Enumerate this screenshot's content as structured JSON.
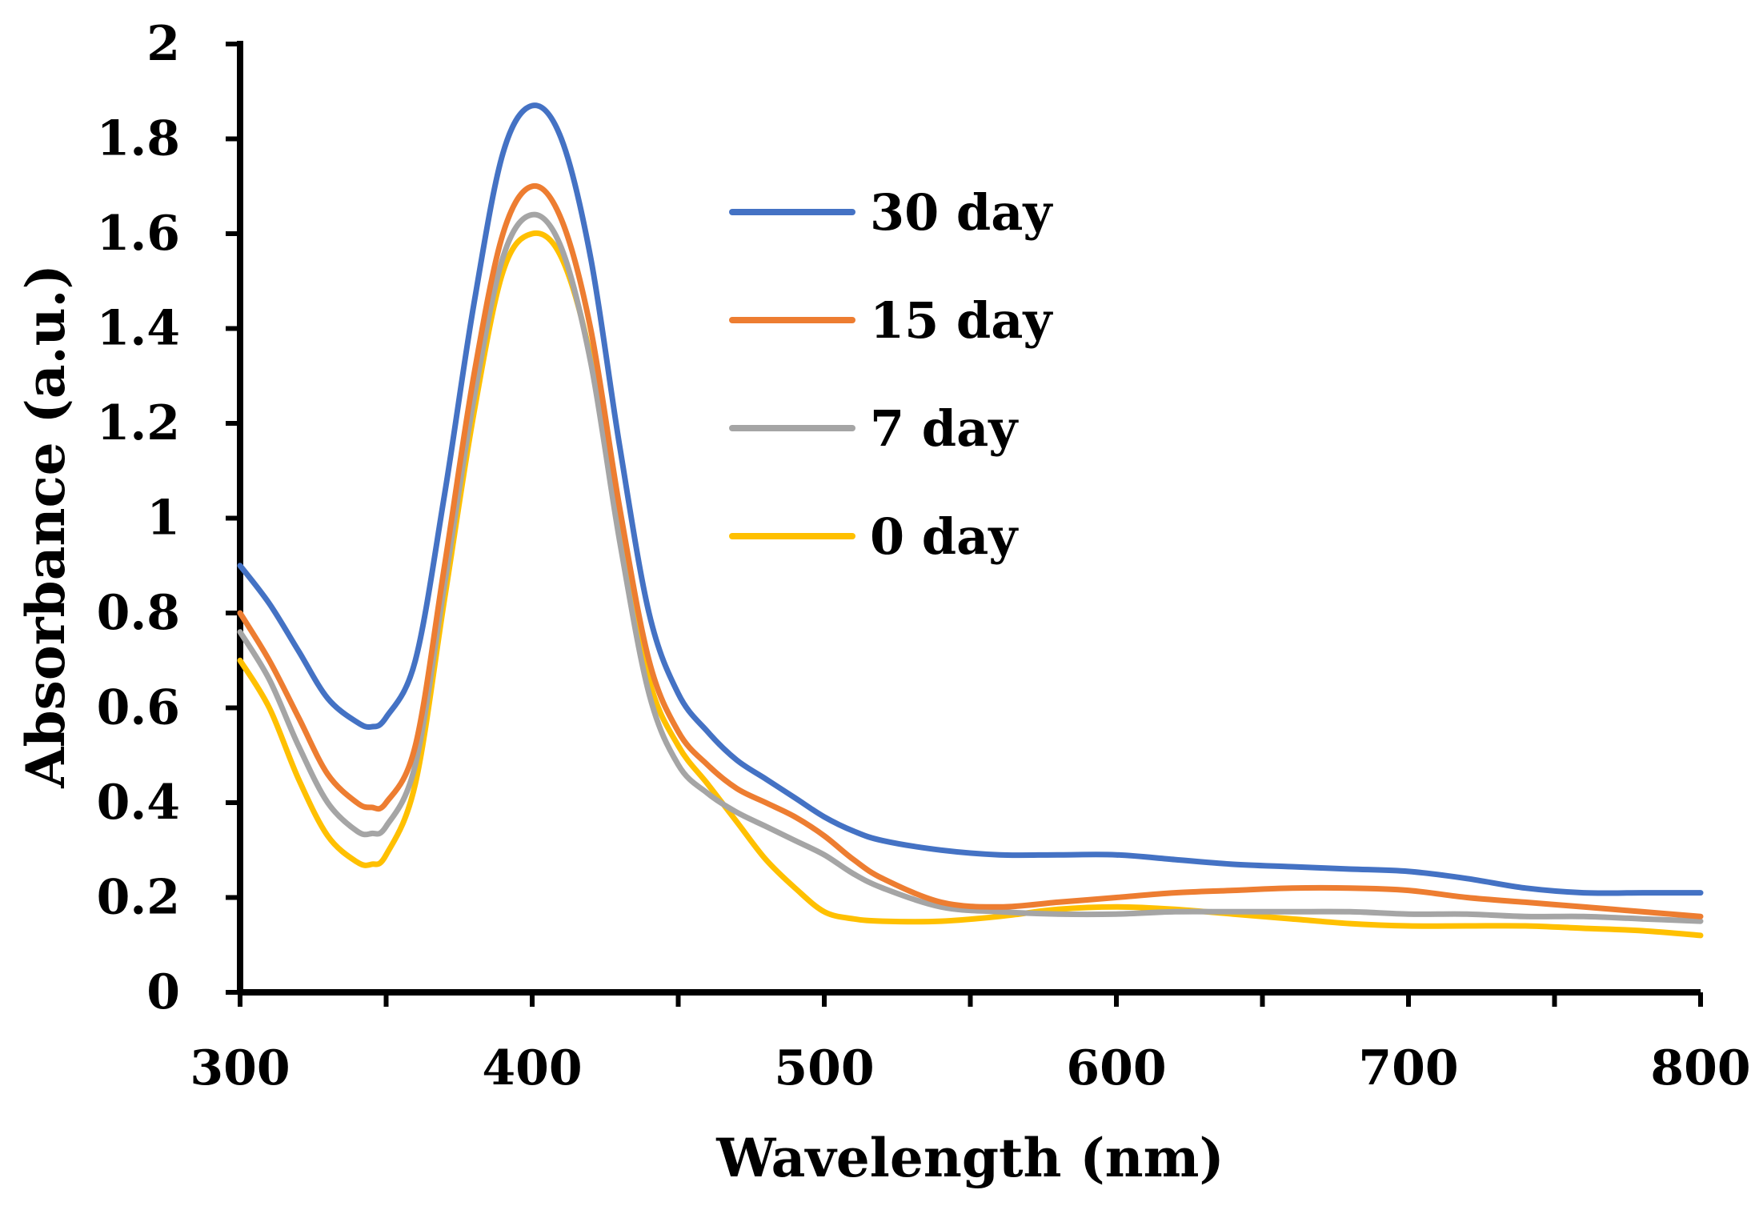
{
  "chart_data": {
    "type": "line",
    "title": "",
    "xlabel": "Wavelength (nm)",
    "ylabel": "Absorbance (a.u.)",
    "xlim": [
      300,
      800
    ],
    "ylim": [
      0,
      2
    ],
    "x_major_ticks": [
      300,
      400,
      500,
      600,
      700,
      800
    ],
    "x_minor_step": 50,
    "y_ticks": [
      0,
      0.2,
      0.4,
      0.6,
      0.8,
      1,
      1.2,
      1.4,
      1.6,
      1.8,
      2
    ],
    "x_tick_labels": [
      "300",
      "400",
      "500",
      "600",
      "700",
      "800"
    ],
    "y_tick_labels": [
      "0",
      "0.2",
      "0.4",
      "0.6",
      "0.8",
      "1",
      "1.2",
      "1.4",
      "1.6",
      "1.8",
      "2"
    ],
    "grid": false,
    "legend_position": "upper-middle",
    "series": [
      {
        "name": "30 day",
        "color": "#4472C4",
        "points": [
          [
            300,
            0.9
          ],
          [
            310,
            0.82
          ],
          [
            320,
            0.72
          ],
          [
            330,
            0.62
          ],
          [
            340,
            0.57
          ],
          [
            345,
            0.56
          ],
          [
            350,
            0.58
          ],
          [
            360,
            0.7
          ],
          [
            370,
            1.05
          ],
          [
            380,
            1.45
          ],
          [
            390,
            1.77
          ],
          [
            400,
            1.87
          ],
          [
            410,
            1.8
          ],
          [
            420,
            1.55
          ],
          [
            430,
            1.15
          ],
          [
            440,
            0.8
          ],
          [
            450,
            0.63
          ],
          [
            460,
            0.55
          ],
          [
            470,
            0.49
          ],
          [
            480,
            0.45
          ],
          [
            490,
            0.41
          ],
          [
            500,
            0.37
          ],
          [
            510,
            0.34
          ],
          [
            520,
            0.32
          ],
          [
            540,
            0.3
          ],
          [
            560,
            0.29
          ],
          [
            580,
            0.29
          ],
          [
            600,
            0.29
          ],
          [
            620,
            0.28
          ],
          [
            640,
            0.27
          ],
          [
            660,
            0.265
          ],
          [
            680,
            0.26
          ],
          [
            700,
            0.255
          ],
          [
            720,
            0.24
          ],
          [
            740,
            0.22
          ],
          [
            760,
            0.21
          ],
          [
            780,
            0.21
          ],
          [
            800,
            0.21
          ]
        ]
      },
      {
        "name": "15 day",
        "color": "#ED7D31",
        "points": [
          [
            300,
            0.8
          ],
          [
            310,
            0.7
          ],
          [
            320,
            0.58
          ],
          [
            330,
            0.46
          ],
          [
            340,
            0.4
          ],
          [
            345,
            0.39
          ],
          [
            350,
            0.4
          ],
          [
            360,
            0.52
          ],
          [
            370,
            0.9
          ],
          [
            380,
            1.3
          ],
          [
            390,
            1.6
          ],
          [
            400,
            1.7
          ],
          [
            410,
            1.63
          ],
          [
            420,
            1.4
          ],
          [
            430,
            1.02
          ],
          [
            440,
            0.7
          ],
          [
            450,
            0.55
          ],
          [
            460,
            0.48
          ],
          [
            470,
            0.43
          ],
          [
            480,
            0.4
          ],
          [
            490,
            0.37
          ],
          [
            500,
            0.33
          ],
          [
            510,
            0.28
          ],
          [
            520,
            0.24
          ],
          [
            540,
            0.19
          ],
          [
            560,
            0.18
          ],
          [
            580,
            0.19
          ],
          [
            600,
            0.2
          ],
          [
            620,
            0.21
          ],
          [
            640,
            0.215
          ],
          [
            660,
            0.22
          ],
          [
            680,
            0.22
          ],
          [
            700,
            0.215
          ],
          [
            720,
            0.2
          ],
          [
            740,
            0.19
          ],
          [
            760,
            0.18
          ],
          [
            780,
            0.17
          ],
          [
            800,
            0.16
          ]
        ]
      },
      {
        "name": "7 day",
        "color": "#A5A5A5",
        "points": [
          [
            300,
            0.76
          ],
          [
            310,
            0.66
          ],
          [
            320,
            0.52
          ],
          [
            330,
            0.4
          ],
          [
            340,
            0.34
          ],
          [
            345,
            0.335
          ],
          [
            350,
            0.35
          ],
          [
            360,
            0.48
          ],
          [
            370,
            0.86
          ],
          [
            380,
            1.25
          ],
          [
            390,
            1.55
          ],
          [
            400,
            1.64
          ],
          [
            410,
            1.57
          ],
          [
            420,
            1.33
          ],
          [
            430,
            0.95
          ],
          [
            440,
            0.63
          ],
          [
            450,
            0.48
          ],
          [
            460,
            0.42
          ],
          [
            470,
            0.38
          ],
          [
            480,
            0.35
          ],
          [
            490,
            0.32
          ],
          [
            500,
            0.29
          ],
          [
            510,
            0.25
          ],
          [
            520,
            0.22
          ],
          [
            540,
            0.18
          ],
          [
            560,
            0.17
          ],
          [
            580,
            0.165
          ],
          [
            600,
            0.165
          ],
          [
            620,
            0.17
          ],
          [
            640,
            0.17
          ],
          [
            660,
            0.17
          ],
          [
            680,
            0.17
          ],
          [
            700,
            0.165
          ],
          [
            720,
            0.165
          ],
          [
            740,
            0.16
          ],
          [
            760,
            0.16
          ],
          [
            780,
            0.155
          ],
          [
            800,
            0.15
          ]
        ]
      },
      {
        "name": "0 day",
        "color": "#FFC000",
        "points": [
          [
            300,
            0.7
          ],
          [
            310,
            0.6
          ],
          [
            320,
            0.45
          ],
          [
            330,
            0.33
          ],
          [
            340,
            0.275
          ],
          [
            345,
            0.27
          ],
          [
            350,
            0.29
          ],
          [
            360,
            0.44
          ],
          [
            370,
            0.83
          ],
          [
            380,
            1.22
          ],
          [
            390,
            1.52
          ],
          [
            400,
            1.6
          ],
          [
            410,
            1.55
          ],
          [
            420,
            1.34
          ],
          [
            430,
            0.98
          ],
          [
            440,
            0.66
          ],
          [
            450,
            0.52
          ],
          [
            460,
            0.44
          ],
          [
            470,
            0.36
          ],
          [
            480,
            0.28
          ],
          [
            490,
            0.22
          ],
          [
            500,
            0.17
          ],
          [
            510,
            0.155
          ],
          [
            520,
            0.15
          ],
          [
            540,
            0.15
          ],
          [
            560,
            0.16
          ],
          [
            580,
            0.175
          ],
          [
            600,
            0.18
          ],
          [
            620,
            0.175
          ],
          [
            640,
            0.165
          ],
          [
            660,
            0.155
          ],
          [
            680,
            0.145
          ],
          [
            700,
            0.14
          ],
          [
            720,
            0.14
          ],
          [
            740,
            0.14
          ],
          [
            760,
            0.135
          ],
          [
            780,
            0.13
          ],
          [
            800,
            0.12
          ]
        ]
      }
    ]
  }
}
